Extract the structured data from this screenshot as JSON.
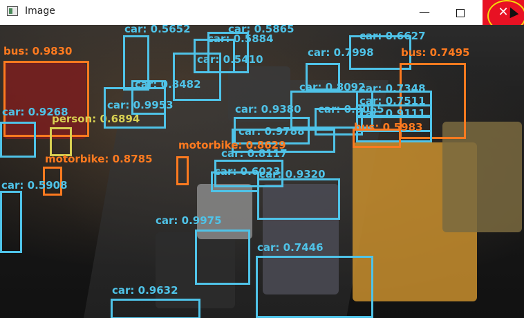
{
  "window": {
    "title": "Image",
    "min_glyph": "—",
    "close_glyph": "✕"
  },
  "colors": {
    "car": "#4fc3e8",
    "bus": "#ff7a1f",
    "motorbike": "#ff7a1f",
    "person": "#d8d052"
  },
  "detections": [
    {
      "cls": "bus",
      "text": "bus: 0.9830"
    },
    {
      "cls": "car",
      "text": "car: 0.9268"
    },
    {
      "cls": "person",
      "text": "person: 0.6894"
    },
    {
      "cls": "motorbike",
      "text": "motorbike: 0.8785"
    },
    {
      "cls": "car",
      "text": "car: 0.5908"
    },
    {
      "cls": "car",
      "text": "car: 0.5652"
    },
    {
      "cls": "car",
      "text": "car: 0.5865"
    },
    {
      "cls": "car",
      "text": "car: 0.5884"
    },
    {
      "cls": "car",
      "text": "car: 0.5410"
    },
    {
      "cls": "car",
      "text": "car: 0.7998"
    },
    {
      "cls": "car",
      "text": "car: 0.6627"
    },
    {
      "cls": "bus",
      "text": "bus: 0.7495"
    },
    {
      "cls": "car",
      "text": "car: 0.8482"
    },
    {
      "cls": "car",
      "text": "car: 0.9953"
    },
    {
      "cls": "car",
      "text": "car: 0.8092"
    },
    {
      "cls": "car",
      "text": "car: 0.7348"
    },
    {
      "cls": "car",
      "text": "car: 0.7511"
    },
    {
      "cls": "car",
      "text": "car: 0.9111"
    },
    {
      "cls": "car",
      "text": "car: 0.9380"
    },
    {
      "cls": "car",
      "text": "car: 0.9065"
    },
    {
      "cls": "bus",
      "text": "bus: 0.5983"
    },
    {
      "cls": "car",
      "text": "car: 0.9788"
    },
    {
      "cls": "motorbike",
      "text": "motorbike: 0.8629"
    },
    {
      "cls": "car",
      "text": "car: 0.8117"
    },
    {
      "cls": "car",
      "text": "car: 0.6023"
    },
    {
      "cls": "car",
      "text": "car: 0.9320"
    },
    {
      "cls": "car",
      "text": "car: 0.9975"
    },
    {
      "cls": "car",
      "text": "car: 0.7446"
    },
    {
      "cls": "car",
      "text": "car: 0.9632"
    }
  ]
}
